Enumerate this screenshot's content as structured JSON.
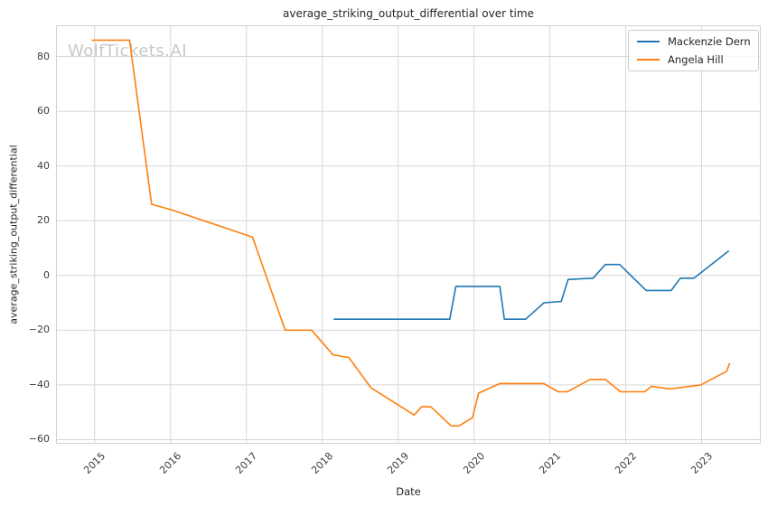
{
  "watermark": {
    "text": "WolfTickets.AI",
    "color": "#c8c8c8"
  },
  "chart_data": {
    "type": "line",
    "title": "average_striking_output_differential over time",
    "xlabel": "Date",
    "ylabel": "average_striking_output_differential",
    "grid": true,
    "legend_position": "upper right",
    "xlim": [
      2014.49,
      2023.78
    ],
    "ylim": [
      -61.5,
      91.4
    ],
    "xticks": [
      2015,
      2016,
      2017,
      2018,
      2019,
      2020,
      2021,
      2022,
      2023
    ],
    "xtick_labels": [
      "2015",
      "2016",
      "2017",
      "2018",
      "2019",
      "2020",
      "2021",
      "2022",
      "2023"
    ],
    "yticks": [
      -60,
      -40,
      -20,
      0,
      20,
      40,
      60,
      80
    ],
    "ytick_labels": [
      "−60",
      "−40",
      "−20",
      "0",
      "20",
      "40",
      "60",
      "80"
    ],
    "colors": {
      "grid": "#d8d8d8",
      "spine": "#d3d3d3",
      "text": "#262626",
      "tick_text": "#3b3b3b"
    },
    "series": [
      {
        "name": "Mackenzie Dern",
        "color": "#1f77b4",
        "points": [
          [
            2018.15,
            -16
          ],
          [
            2019.68,
            -16
          ],
          [
            2019.76,
            -4
          ],
          [
            2020.34,
            -4
          ],
          [
            2020.4,
            -16
          ],
          [
            2020.68,
            -16
          ],
          [
            2020.74,
            -14.5
          ],
          [
            2020.92,
            -10
          ],
          [
            2021.15,
            -9.5
          ],
          [
            2021.24,
            -1.5
          ],
          [
            2021.57,
            -1
          ],
          [
            2021.73,
            4
          ],
          [
            2021.92,
            4
          ],
          [
            2022.27,
            -5.5
          ],
          [
            2022.6,
            -5.5
          ],
          [
            2022.72,
            -1
          ],
          [
            2022.9,
            -1
          ],
          [
            2023.36,
            9
          ]
        ]
      },
      {
        "name": "Angela Hill",
        "color": "#ff7f0e",
        "points": [
          [
            2014.96,
            86
          ],
          [
            2015.46,
            86
          ],
          [
            2015.75,
            26
          ],
          [
            2016.01,
            24
          ],
          [
            2017.08,
            14
          ],
          [
            2017.51,
            -20
          ],
          [
            2017.86,
            -20
          ],
          [
            2018.14,
            -29
          ],
          [
            2018.35,
            -30
          ],
          [
            2018.64,
            -41
          ],
          [
            2019.21,
            -51
          ],
          [
            2019.31,
            -48
          ],
          [
            2019.43,
            -48
          ],
          [
            2019.7,
            -55
          ],
          [
            2019.8,
            -55
          ],
          [
            2019.98,
            -52
          ],
          [
            2020.06,
            -43
          ],
          [
            2020.34,
            -39.5
          ],
          [
            2020.92,
            -39.5
          ],
          [
            2021.11,
            -42.5
          ],
          [
            2021.23,
            -42.5
          ],
          [
            2021.53,
            -38
          ],
          [
            2021.73,
            -38
          ],
          [
            2021.93,
            -42.5
          ],
          [
            2022.25,
            -42.5
          ],
          [
            2022.34,
            -40.5
          ],
          [
            2022.58,
            -41.5
          ],
          [
            2022.99,
            -40
          ],
          [
            2023.33,
            -35
          ],
          [
            2023.37,
            -32
          ]
        ]
      }
    ]
  }
}
